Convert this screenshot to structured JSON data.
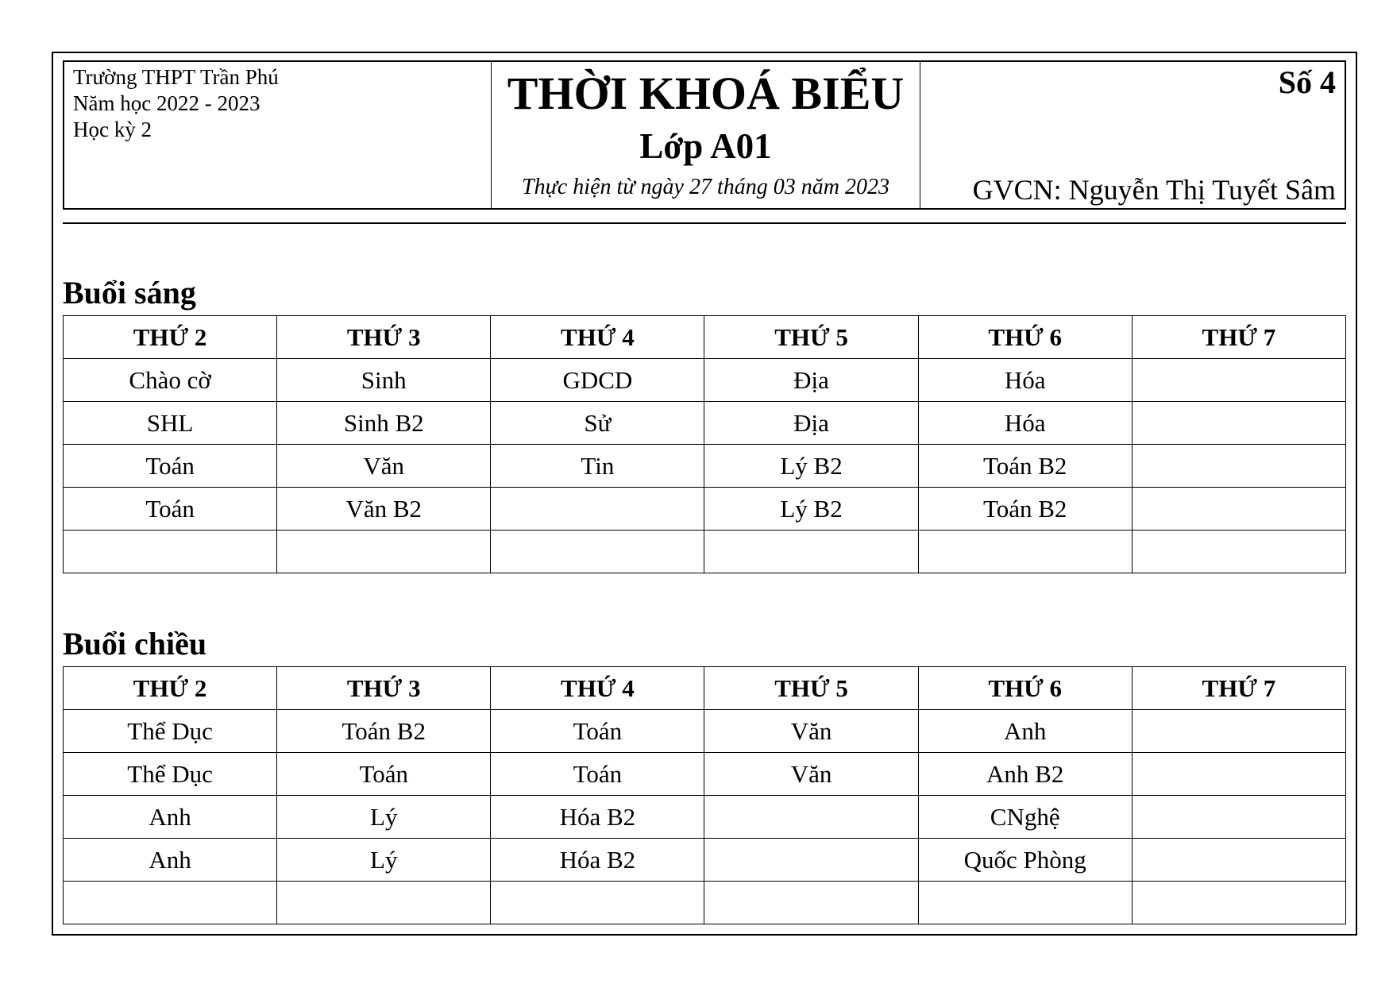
{
  "header": {
    "school": "Trường THPT Trần Phú",
    "year": "Năm học 2022 - 2023",
    "term": "Học kỳ 2",
    "title": "THỜI KHOÁ BIỂU",
    "class": "Lớp A01",
    "effective": "Thực hiện từ ngày 27 tháng 03 năm 2023",
    "number": "Số 4",
    "teacher": "GVCN: Nguyễn Thị Tuyết Sâm"
  },
  "days": [
    "THỨ 2",
    "THỨ 3",
    "THỨ 4",
    "THỨ 5",
    "THỨ 6",
    "THỨ 7"
  ],
  "morning": {
    "label": "Buổi sáng",
    "rows": [
      [
        "Chào cờ",
        "Sinh",
        "GDCD",
        "Địa",
        "Hóa",
        ""
      ],
      [
        "SHL",
        "Sinh B2",
        "Sử",
        "Địa",
        "Hóa",
        ""
      ],
      [
        "Toán",
        "Văn",
        "Tin",
        "Lý B2",
        "Toán B2",
        ""
      ],
      [
        "Toán",
        "Văn B2",
        "",
        "Lý B2",
        "Toán B2",
        ""
      ],
      [
        "",
        "",
        "",
        "",
        "",
        ""
      ]
    ]
  },
  "afternoon": {
    "label": "Buổi chiều",
    "rows": [
      [
        "Thể Dục",
        "Toán B2",
        "Toán",
        "Văn",
        "Anh",
        ""
      ],
      [
        "Thể Dục",
        "Toán",
        "Toán",
        "Văn",
        "Anh B2",
        ""
      ],
      [
        "Anh",
        "Lý",
        "Hóa B2",
        "",
        "CNghệ",
        ""
      ],
      [
        "Anh",
        "Lý",
        "Hóa B2",
        "",
        "Quốc Phòng",
        ""
      ],
      [
        "",
        "",
        "",
        "",
        "",
        ""
      ]
    ]
  }
}
